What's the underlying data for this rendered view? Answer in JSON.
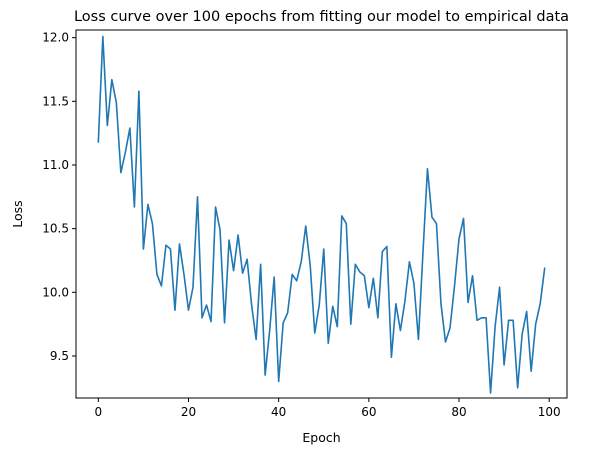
{
  "chart_data": {
    "type": "line",
    "title": "Loss curve over 100 epochs from fitting our model to empirical data",
    "xlabel": "Epoch",
    "ylabel": "Loss",
    "xlim": [
      -4.95,
      103.95
    ],
    "ylim": [
      9.17,
      12.06
    ],
    "xticks": [
      0,
      20,
      40,
      60,
      80,
      100
    ],
    "yticks": [
      9.5,
      10.0,
      10.5,
      11.0,
      11.5,
      12.0
    ],
    "ytick_labels": [
      "9.5",
      "10.0",
      "10.5",
      "11.0",
      "11.5",
      "12.0"
    ],
    "grid": false,
    "legend": "none",
    "line_color": "#1f77b4",
    "series": [
      {
        "x": [
          0,
          1,
          2,
          3,
          4,
          5,
          6,
          7,
          8,
          9,
          10,
          11,
          12,
          13,
          14,
          15,
          16,
          17,
          18,
          19,
          20,
          21,
          22,
          23,
          24,
          25,
          26,
          27,
          28,
          29,
          30,
          31,
          32,
          33,
          34,
          35,
          36,
          37,
          38,
          39,
          40,
          41,
          42,
          43,
          44,
          45,
          46,
          47,
          48,
          49,
          50,
          51,
          52,
          53,
          54,
          55,
          56,
          57,
          58,
          59,
          60,
          61,
          62,
          63,
          64,
          65,
          66,
          67,
          68,
          69,
          70,
          71,
          72,
          73,
          74,
          75,
          76,
          77,
          78,
          79,
          80,
          81,
          82,
          83,
          84,
          85,
          86,
          87,
          88,
          89,
          90,
          91,
          92,
          93,
          94,
          95,
          96,
          97,
          98,
          99
        ],
        "y": [
          11.18,
          12.01,
          11.31,
          11.67,
          11.49,
          10.94,
          11.1,
          11.29,
          10.67,
          11.58,
          10.34,
          10.69,
          10.54,
          10.14,
          10.05,
          10.37,
          10.34,
          9.86,
          10.38,
          10.14,
          9.86,
          10.04,
          10.75,
          9.8,
          9.9,
          9.77,
          10.67,
          10.49,
          9.76,
          10.41,
          10.17,
          10.45,
          10.15,
          10.26,
          9.9,
          9.63,
          10.22,
          9.35,
          9.7,
          10.12,
          9.3,
          9.76,
          9.84,
          10.14,
          10.09,
          10.24,
          10.52,
          10.21,
          9.68,
          9.9,
          10.34,
          9.6,
          9.89,
          9.73,
          10.6,
          10.54,
          9.75,
          10.22,
          10.16,
          10.13,
          9.88,
          10.11,
          9.8,
          10.32,
          10.36,
          9.49,
          9.91,
          9.7,
          9.93,
          10.24,
          10.07,
          9.63,
          10.31,
          10.97,
          10.59,
          10.54,
          9.91,
          9.61,
          9.72,
          10.05,
          10.42,
          10.58,
          9.92,
          10.13,
          9.78,
          9.8,
          9.8,
          9.21,
          9.73,
          10.04,
          9.43,
          9.78,
          9.78,
          9.25,
          9.67,
          9.85,
          9.38,
          9.75,
          9.91,
          10.19
        ]
      }
    ]
  }
}
